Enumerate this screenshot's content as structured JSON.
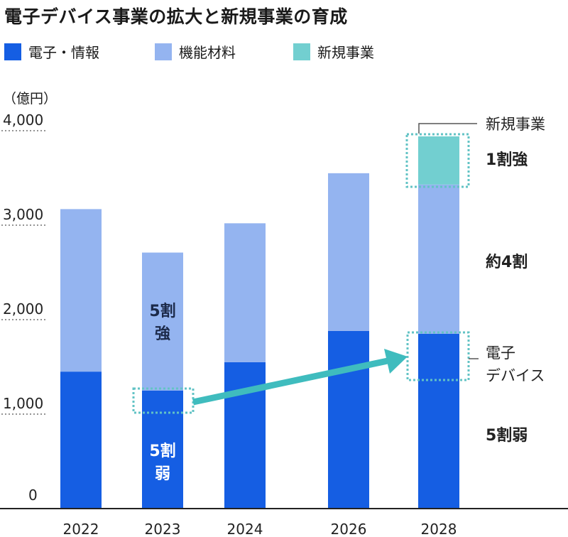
{
  "title": "電子デバイス事業の拡大と新規事業の育成",
  "unit_label": "（億円）",
  "colors": {
    "electronics": "#155ee3",
    "materials": "#94b4f0",
    "new_business": "#72cfd0",
    "arrow": "#3fbcbe",
    "dotted_box": "#62c3c5",
    "axis": "#222222",
    "gridline": "#555555"
  },
  "legend": [
    {
      "label": "電子・情報",
      "color": "#155ee3"
    },
    {
      "label": "機能材料",
      "color": "#94b4f0"
    },
    {
      "label": "新規事業",
      "color": "#72cfd0"
    }
  ],
  "chart_data": {
    "type": "bar",
    "stacked": true,
    "title": "電子デバイス事業の拡大と新規事業の育成",
    "ylabel": "（億円）",
    "ylim": [
      0,
      4000
    ],
    "yticks": [
      0,
      1000,
      2000,
      3000,
      4000
    ],
    "ytick_labels": [
      "0",
      "1,000",
      "2,000",
      "3,000",
      "4,000"
    ],
    "categories": [
      "2022",
      "2023",
      "2024",
      "2026",
      "2028"
    ],
    "series": [
      {
        "name": "電子・情報",
        "values": [
          1450,
          1250,
          1550,
          1880,
          1850
        ]
      },
      {
        "name": "機能材料",
        "values": [
          1720,
          1460,
          1470,
          1670,
          1580
        ]
      },
      {
        "name": "新規事業",
        "values": [
          0,
          0,
          0,
          0,
          510
        ]
      }
    ],
    "annotations": {
      "bar_2023_upper": [
        "5割",
        "強"
      ],
      "bar_2023_lower": [
        "5割",
        "弱"
      ],
      "right_new_business_label": "新規事業",
      "right_new_business_share": "1割強",
      "right_materials_share": "約4割",
      "right_device_label": [
        "電子",
        "デバイス"
      ],
      "right_electronics_share": "5割弱"
    }
  }
}
